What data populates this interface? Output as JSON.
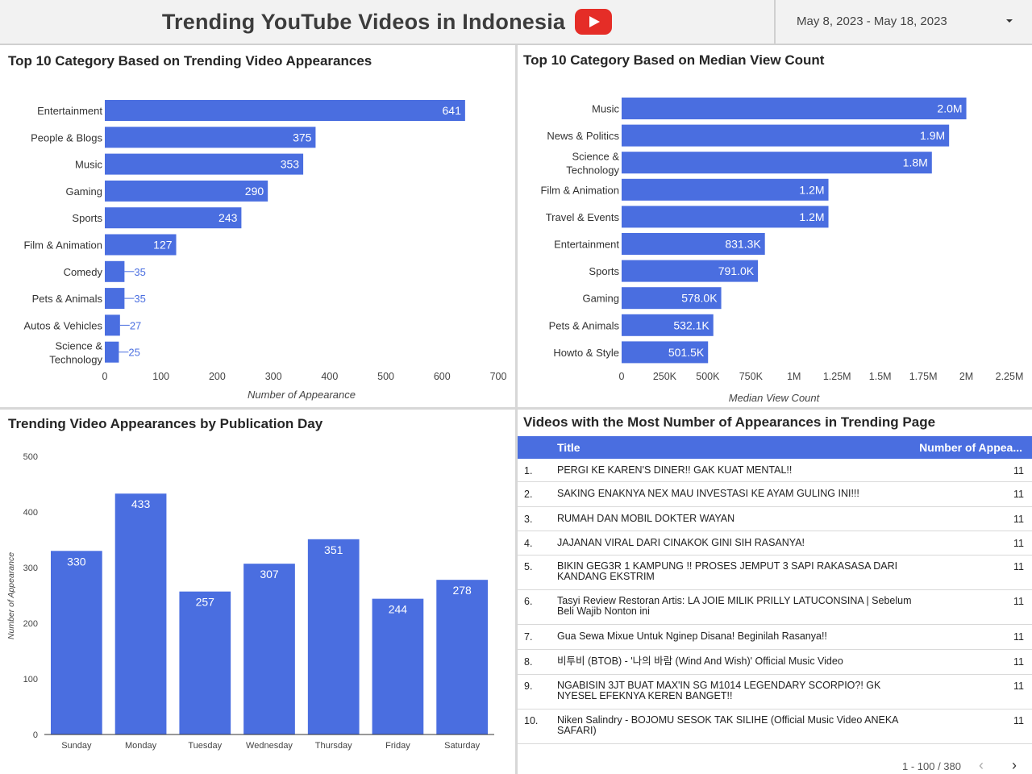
{
  "header": {
    "title": "Trending YouTube Videos in Indonesia",
    "logo_icon": "youtube-logo-icon",
    "date_range": "May 8, 2023 - May 18, 2023",
    "caret_icon": "caret-down-icon"
  },
  "colors": {
    "bar": "#4a6ee0",
    "header_bg": "#f2f2f2",
    "logo": "#e52d27"
  },
  "panels": {
    "appearances": {
      "title": "Top 10 Category Based on Trending Video Appearances"
    },
    "median": {
      "title": "Top 10 Category Based on Median View Count"
    },
    "days": {
      "title": "Trending Video Appearances by Publication Day"
    },
    "videos": {
      "title": "Videos with the Most Number of Appearances in Trending Page"
    }
  },
  "chart_data": [
    {
      "type": "bar",
      "orientation": "horizontal",
      "categories": [
        "Entertainment",
        "People & Blogs",
        "Music",
        "Gaming",
        "Sports",
        "Film & Animation",
        "Comedy",
        "Pets & Animals",
        "Autos & Vehicles",
        "Science & Technology"
      ],
      "values": [
        641,
        375,
        353,
        290,
        243,
        127,
        35,
        35,
        27,
        25
      ],
      "value_labels": [
        "641",
        "375",
        "353",
        "290",
        "243",
        "127",
        "35",
        "35",
        "27",
        "25"
      ],
      "xlabel": "Number of Appearance",
      "xlim": [
        0,
        700
      ],
      "xticks": [
        0,
        100,
        200,
        300,
        400,
        500,
        600,
        700
      ],
      "xtick_labels": [
        "0",
        "100",
        "200",
        "300",
        "400",
        "500",
        "600",
        "700"
      ],
      "grid": false
    },
    {
      "type": "bar",
      "orientation": "horizontal",
      "categories": [
        "Music",
        "News & Politics",
        "Science & Technology",
        "Film & Animation",
        "Travel & Events",
        "Entertainment",
        "Sports",
        "Gaming",
        "Pets & Animals",
        "Howto & Style"
      ],
      "values": [
        2000000,
        1900000,
        1800000,
        1200000,
        1200000,
        831300,
        791000,
        578000,
        532100,
        501500
      ],
      "value_labels": [
        "2.0M",
        "1.9M",
        "1.8M",
        "1.2M",
        "1.2M",
        "831.3K",
        "791.0K",
        "578.0K",
        "532.1K",
        "501.5K"
      ],
      "xlabel": "Median View Count",
      "xlim": [
        0,
        2250000
      ],
      "xticks": [
        0,
        250000,
        500000,
        750000,
        1000000,
        1250000,
        1500000,
        1750000,
        2000000,
        2250000
      ],
      "xtick_labels": [
        "0",
        "250K",
        "500K",
        "750K",
        "1M",
        "1.25M",
        "1.5M",
        "1.75M",
        "2M",
        "2.25M"
      ],
      "grid": false
    },
    {
      "type": "bar",
      "orientation": "vertical",
      "categories": [
        "Sunday",
        "Monday",
        "Tuesday",
        "Wednesday",
        "Thursday",
        "Friday",
        "Saturday"
      ],
      "values": [
        330,
        433,
        257,
        307,
        351,
        244,
        278
      ],
      "ylabel": "Number of Appearance",
      "ylim": [
        0,
        500
      ],
      "yticks": [
        0,
        100,
        200,
        300,
        400,
        500
      ],
      "ytick_labels": [
        "0",
        "100",
        "200",
        "300",
        "400",
        "500"
      ],
      "grid": false
    }
  ],
  "table": {
    "columns": [
      "Title",
      "Number of Appea..."
    ],
    "rows": [
      {
        "num": "1.",
        "title": "PERGI KE KAREN'S DINER!! GAK KUAT MENTAL!!",
        "count": "11"
      },
      {
        "num": "2.",
        "title": "SAKING ENAKNYA NEX MAU INVESTASI KE AYAM GULING INI!!!",
        "count": "11"
      },
      {
        "num": "3.",
        "title": "RUMAH DAN MOBIL DOKTER WAYAN",
        "count": "11"
      },
      {
        "num": "4.",
        "title": "JAJANAN VIRAL DARI CINAKOK GINI SIH RASANYA!",
        "count": "11"
      },
      {
        "num": "5.",
        "title": "BIKIN GEG3R 1 KAMPUNG !! PROSES JEMPUT 3 SAPI RAKASASA DARI KANDANG EKSTRIM",
        "count": "11"
      },
      {
        "num": "6.",
        "title": "Tasyi Review Restoran Artis: LA JOIE MILIK PRILLY LATUCONSINA | Sebelum Beli Wajib Nonton ini",
        "count": "11"
      },
      {
        "num": "7.",
        "title": "Gua Sewa Mixue Untuk Nginep Disana! Beginilah Rasanya!!",
        "count": "11"
      },
      {
        "num": "8.",
        "title": "비투비 (BTOB) - '나의 바람 (Wind And Wish)' Official Music Video",
        "count": "11"
      },
      {
        "num": "9.",
        "title": "NGABISIN 3JT BUAT MAX'IN SG M1014 LEGENDARY SCORPIO?! GK NYESEL EFEKNYA KEREN BANGET!!",
        "count": "11"
      },
      {
        "num": "10.",
        "title": "Niken Salindry - BOJOMU SESOK TAK SILIHE (Official Music Video ANEKA SAFARI)",
        "count": "11"
      }
    ],
    "pagination": "1 - 100 / 380",
    "prev_icon": "chevron-left-icon",
    "next_icon": "chevron-right-icon"
  }
}
